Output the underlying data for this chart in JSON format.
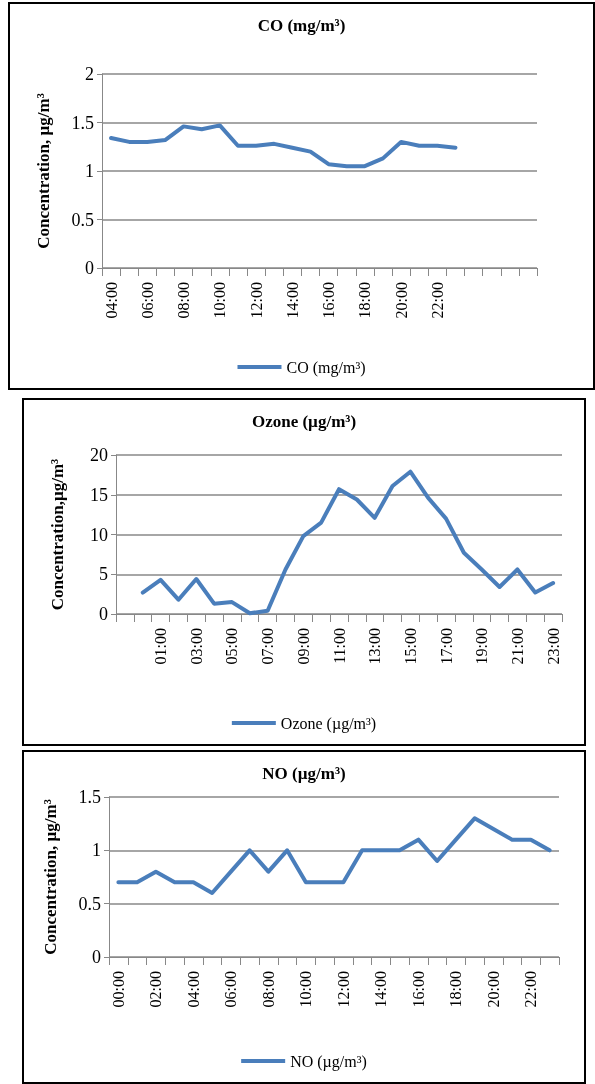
{
  "chart_data": [
    {
      "type": "line",
      "title": "CO (mg/m³)",
      "ylabel": "Concentration, µg/m³",
      "categories": [
        "04:00",
        null,
        "06:00",
        null,
        "08:00",
        null,
        "10:00",
        null,
        "12:00",
        null,
        "14:00",
        null,
        "16:00",
        null,
        "18:00",
        null,
        "20:00",
        null,
        "22:00",
        null,
        null,
        null,
        null,
        null
      ],
      "series": [
        {
          "name": "CO (mg/m³)",
          "color": "#4a7ebb",
          "values": [
            1.34,
            1.3,
            1.3,
            1.32,
            1.46,
            1.43,
            1.47,
            1.26,
            1.26,
            1.28,
            1.24,
            1.2,
            1.07,
            1.05,
            1.05,
            1.13,
            1.3,
            1.26,
            1.26,
            1.24,
            null,
            null,
            null,
            null
          ]
        }
      ],
      "ylim": [
        0,
        2
      ],
      "yticks": [
        0,
        0.5,
        1,
        1.5,
        2
      ],
      "grid": "y",
      "legend": "bottom",
      "marker": "none",
      "line_style": "solid"
    },
    {
      "type": "line",
      "title": "Ozone (µg/m³)",
      "ylabel": "Concentration,µg/m³",
      "categories": [
        null,
        null,
        "01:00",
        null,
        "03:00",
        null,
        "05:00",
        null,
        "07:00",
        null,
        "09:00",
        null,
        "11:00",
        null,
        "13:00",
        null,
        "15:00",
        null,
        "17:00",
        null,
        "19:00",
        null,
        "21:00",
        null,
        "23:00"
      ],
      "series": [
        {
          "name": "Ozone (µg/m³)",
          "color": "#4a7ebb",
          "values": [
            null,
            2.7,
            4.3,
            1.8,
            4.4,
            1.3,
            1.5,
            0.1,
            0.4,
            5.6,
            9.8,
            11.5,
            15.7,
            14.4,
            12.1,
            16.1,
            17.9,
            14.6,
            12.0,
            7.7,
            5.6,
            3.4,
            5.6,
            2.7,
            3.9
          ]
        }
      ],
      "ylim": [
        0,
        20
      ],
      "yticks": [
        0,
        5,
        10,
        15,
        20
      ],
      "grid": "y",
      "legend": "bottom",
      "marker": "none",
      "line_style": "solid"
    },
    {
      "type": "line",
      "title": "NO (µg/m³)",
      "ylabel": "Concentration, µg/m³",
      "categories": [
        "00:00",
        null,
        "02:00",
        null,
        "04:00",
        null,
        "06:00",
        null,
        "08:00",
        null,
        "10:00",
        null,
        "12:00",
        null,
        "14:00",
        null,
        "16:00",
        null,
        "18:00",
        null,
        "20:00",
        null,
        "22:00",
        null
      ],
      "series": [
        {
          "name": "NO (µg/m³)",
          "color": "#4a7ebb",
          "values": [
            0.7,
            0.7,
            0.8,
            0.7,
            0.7,
            0.6,
            0.8,
            1.0,
            0.8,
            1.0,
            0.7,
            0.7,
            0.7,
            1.0,
            1.0,
            1.0,
            1.1,
            0.9,
            1.1,
            1.3,
            1.2,
            1.1,
            1.1,
            1.0
          ]
        }
      ],
      "ylim": [
        0,
        1.5
      ],
      "yticks": [
        0,
        0.5,
        1,
        1.5
      ],
      "grid": "y",
      "legend": "bottom",
      "marker": "none",
      "line_style": "solid"
    }
  ]
}
